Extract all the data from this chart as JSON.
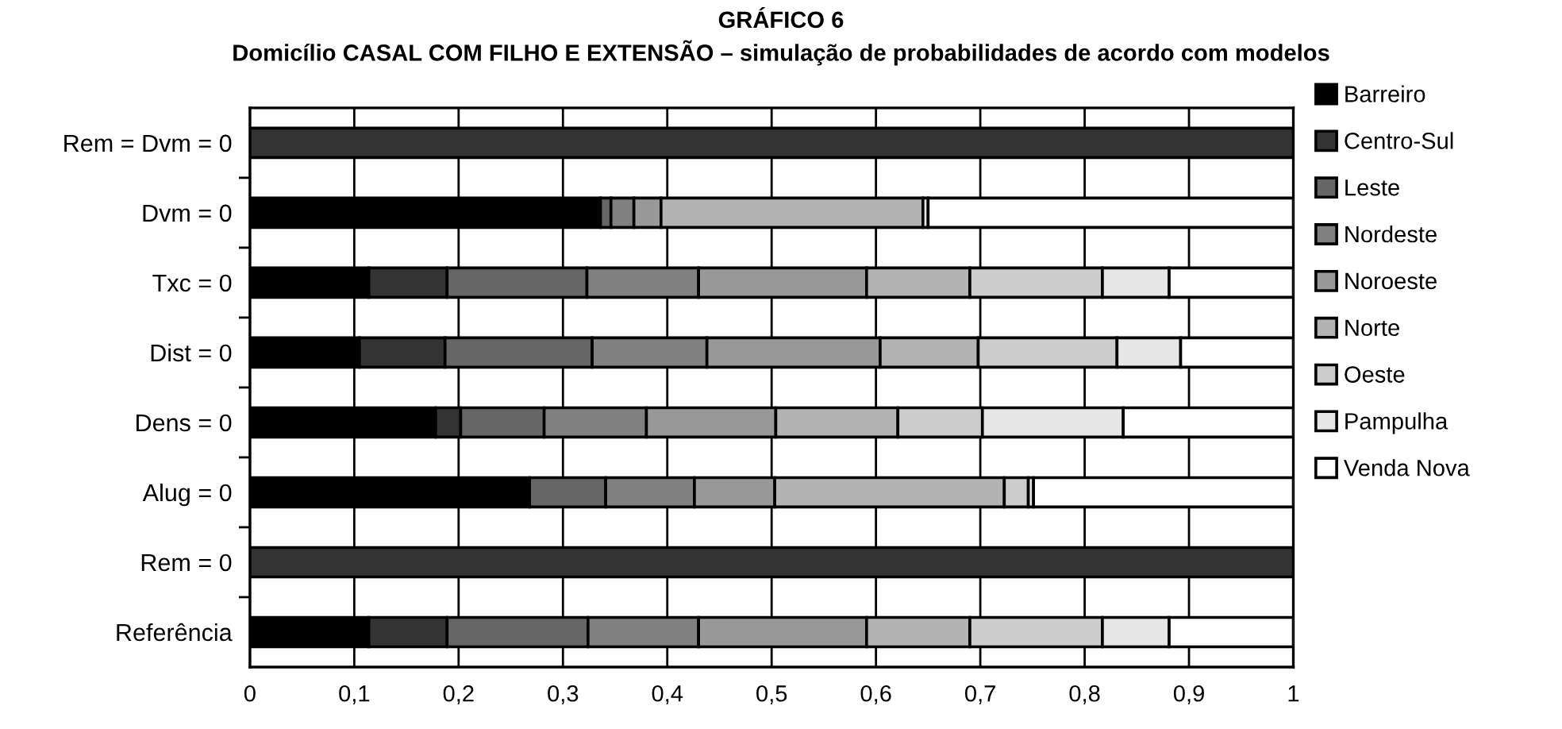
{
  "chart_data": {
    "type": "bar",
    "orientation": "horizontal",
    "stacked": true,
    "title": "GRÁFICO 6",
    "subtitle": "Domicílio CASAL COM FILHO E EXTENSÃO – simulação de probabilidades de acordo com modelos",
    "categories": [
      "Rem = Dvm = 0",
      "Dvm = 0",
      "Txc = 0",
      "Dist = 0",
      "Dens = 0",
      "Alug = 0",
      "Rem = 0",
      "Referência"
    ],
    "series": [
      {
        "name": "Barreiro",
        "color": "#000000",
        "values": [
          0,
          0.336,
          0.114,
          0.105,
          0.178,
          0.268,
          0,
          0.114
        ]
      },
      {
        "name": "Centro-Sul",
        "color": "#333333",
        "values": [
          1,
          0,
          0.075,
          0.082,
          0.024,
          0,
          1,
          0.075
        ]
      },
      {
        "name": "Leste",
        "color": "#666666",
        "values": [
          0,
          0.01,
          0.134,
          0.141,
          0.08,
          0.073,
          0,
          0.135
        ]
      },
      {
        "name": "Nordeste",
        "color": "#808080",
        "values": [
          0,
          0.022,
          0.107,
          0.11,
          0.098,
          0.085,
          0,
          0.106
        ]
      },
      {
        "name": "Noroeste",
        "color": "#999999",
        "values": [
          0,
          0.026,
          0.161,
          0.166,
          0.124,
          0.077,
          0,
          0.161
        ]
      },
      {
        "name": "Norte",
        "color": "#b3b3b3",
        "values": [
          0,
          0.251,
          0.099,
          0.094,
          0.117,
          0.22,
          0,
          0.099
        ]
      },
      {
        "name": "Oeste",
        "color": "#cccccc",
        "values": [
          0,
          0,
          0.127,
          0.133,
          0.081,
          0.023,
          0,
          0.127
        ]
      },
      {
        "name": "Pampulha",
        "color": "#e6e6e6",
        "values": [
          0,
          0.005,
          0.064,
          0.061,
          0.135,
          0.005,
          0,
          0.064
        ]
      },
      {
        "name": "Venda Nova",
        "color": "#ffffff",
        "values": [
          0,
          0.35,
          0.119,
          0.108,
          0.163,
          0.249,
          0,
          0.119
        ]
      }
    ],
    "xlim": [
      0,
      1
    ],
    "xticks": [
      0,
      {
        "value": 0.1,
        "label": "0,1"
      },
      {
        "value": 0.2,
        "label": "0,2"
      },
      {
        "value": 0.3,
        "label": "0,3"
      },
      {
        "value": 0.4,
        "label": "0,4"
      },
      {
        "value": 0.5,
        "label": "0,5"
      },
      {
        "value": 0.6,
        "label": "0,6"
      },
      {
        "value": 0.7,
        "label": "0,7"
      },
      {
        "value": 0.8,
        "label": "0,8"
      },
      {
        "value": 0.9,
        "label": "0,9"
      },
      1
    ],
    "grid": "x",
    "legend": "right"
  }
}
